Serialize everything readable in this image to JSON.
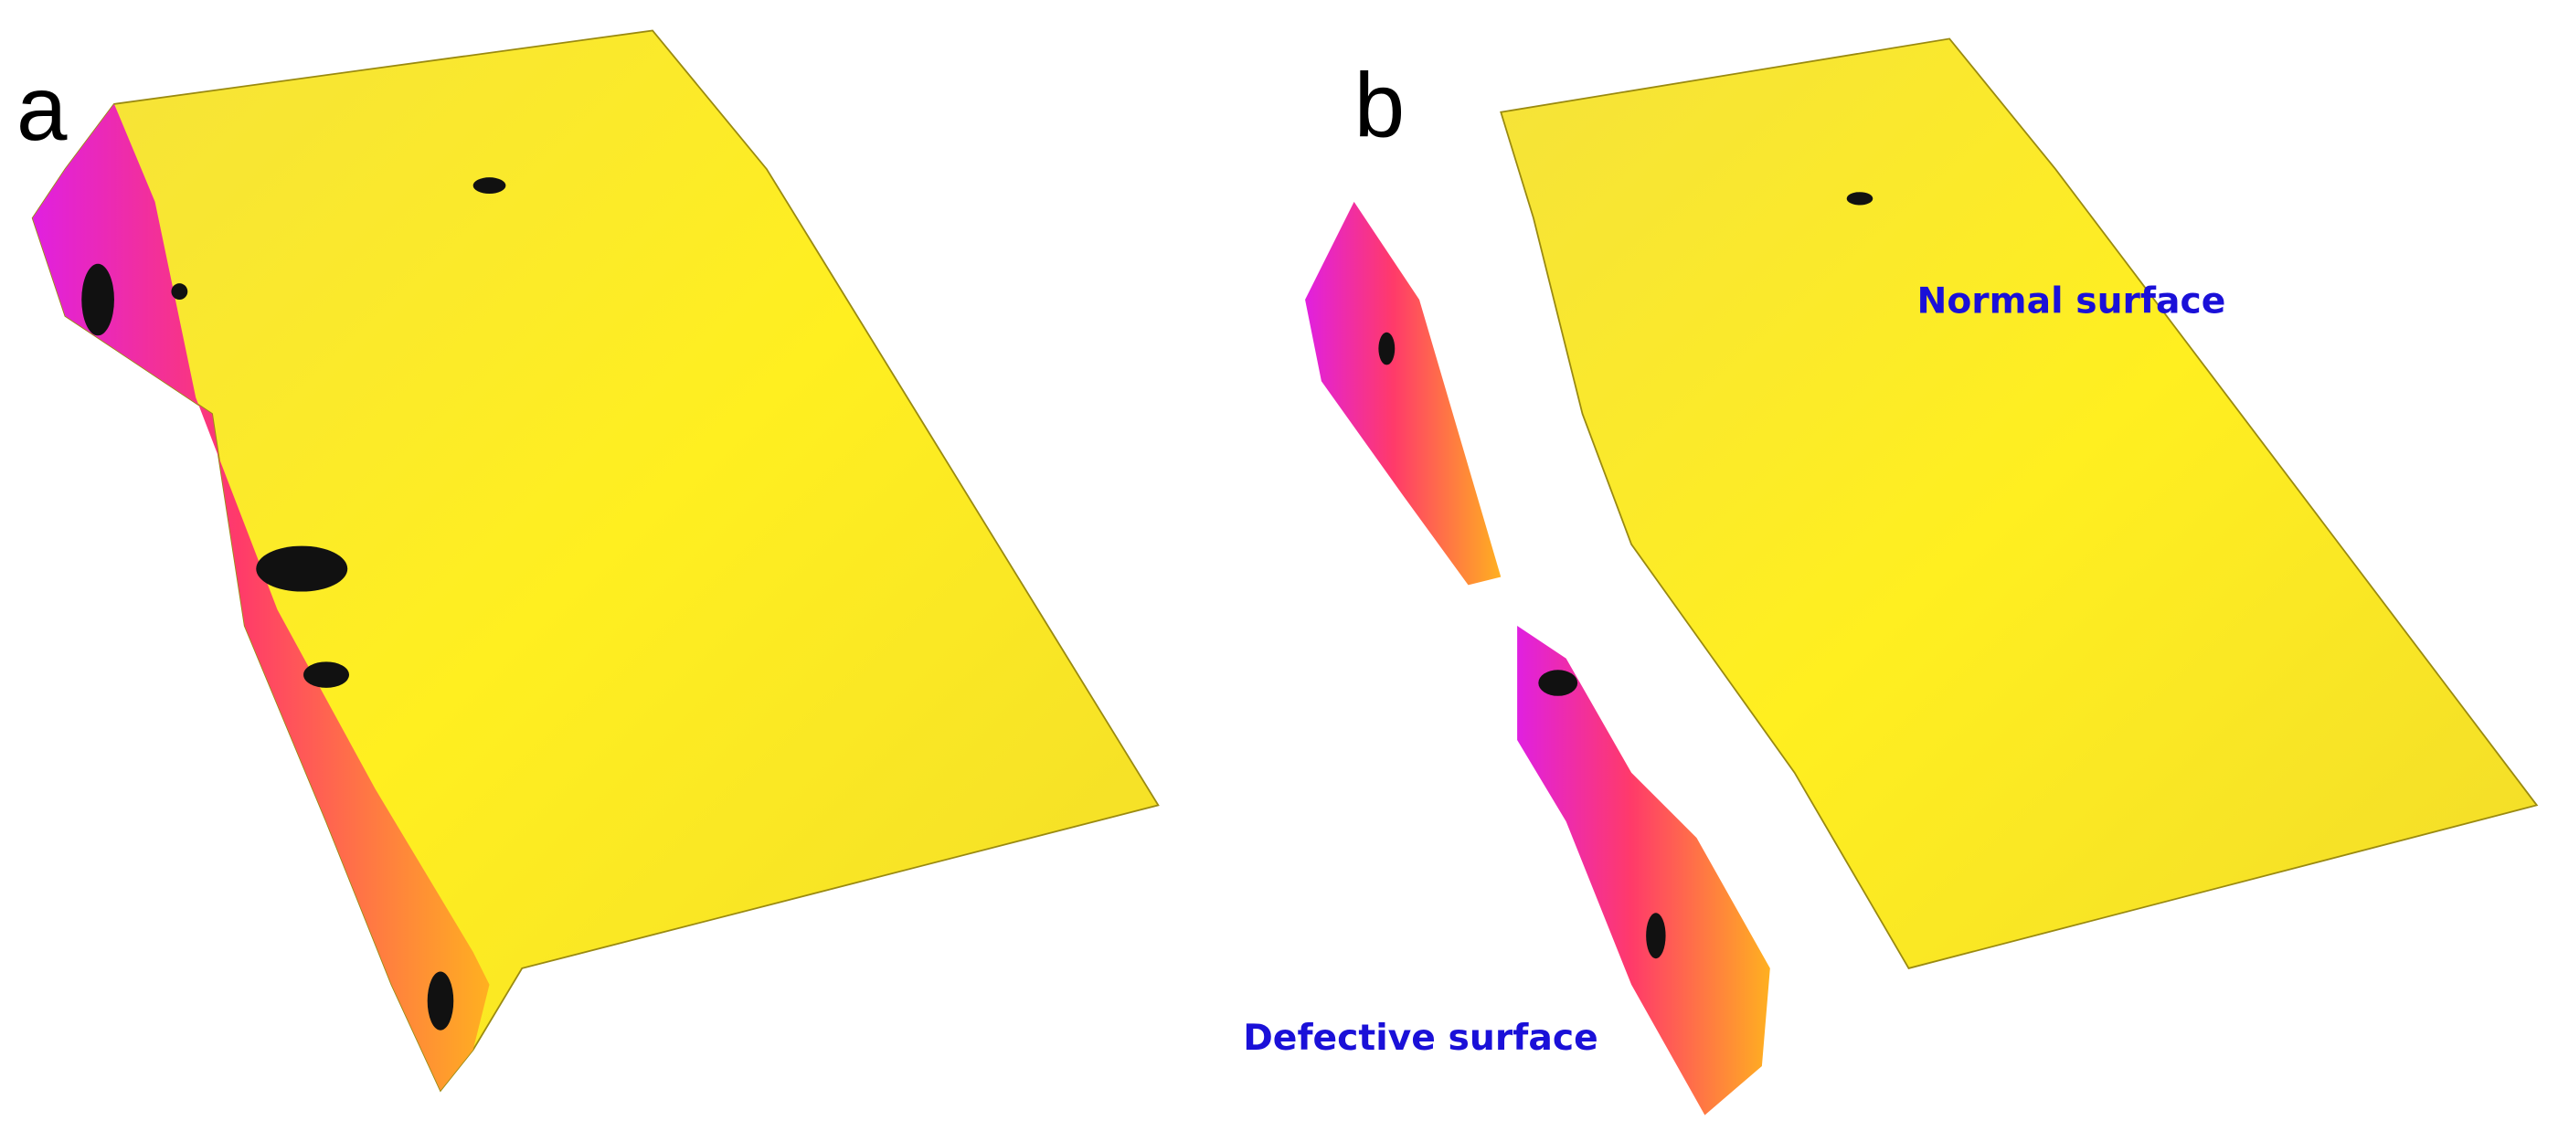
{
  "panels": [
    {
      "label": "a"
    },
    {
      "label": "b",
      "annotations": [
        "Normal surface",
        "Defective surface"
      ]
    }
  ]
}
